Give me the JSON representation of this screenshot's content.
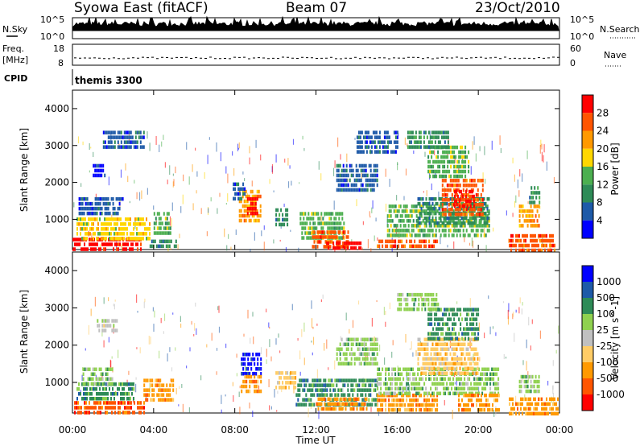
{
  "header": {
    "station": "Syowa East (fitACF)",
    "beam": "Beam 07",
    "date": "23/Oct/2010"
  },
  "sky_panel": {
    "left_label": "N.Sky",
    "right_label": "N.Search",
    "left_ticks": [
      "10^5",
      "10^0"
    ],
    "right_ticks": [
      "10^5",
      "10^0"
    ]
  },
  "freq_panel": {
    "left_label_top": "Freq.",
    "left_label_bottom": "[MHz]",
    "left_ticks": [
      "18",
      "8"
    ],
    "right_label": "Nave",
    "right_ticks": [
      "60",
      "0"
    ]
  },
  "cpid": {
    "label": "CPID",
    "value": "themis 3300"
  },
  "x_axis": {
    "label": "Time UT",
    "ticks": [
      "00:00",
      "04:00",
      "08:00",
      "12:00",
      "16:00",
      "20:00",
      "00:00"
    ]
  },
  "colors": {
    "power": [
      "#0000ff",
      "#1e5aa8",
      "#2e8b57",
      "#4caf50",
      "#ffd700",
      "#ff9900",
      "#ff5500",
      "#ff0000"
    ],
    "velocity": [
      "#ff0000",
      "#ff5500",
      "#ff9900",
      "#ffcc66",
      "#c0c0c0",
      "#8fd14f",
      "#2e8b57",
      "#1e5aa8",
      "#0000ff"
    ]
  },
  "chart_data": [
    {
      "type": "heatmap",
      "title": "",
      "ylabel": "Slant Range [km]",
      "xlabel": "",
      "x_hours": [
        0,
        24
      ],
      "ylim": [
        180,
        4500
      ],
      "yticks": [
        "4000",
        "3000",
        "2000",
        "1000"
      ],
      "colorbar_label": "Power [dB]",
      "colorbar_ticks": [
        "28",
        "24",
        "20",
        "16",
        "12",
        "8",
        "4"
      ],
      "colorbar_range": [
        0,
        30
      ],
      "patches": [
        {
          "t0": 0.0,
          "t1": 3.4,
          "r0": 200,
          "r1": 500,
          "level": 7
        },
        {
          "t0": 0.2,
          "t1": 3.8,
          "r0": 500,
          "r1": 1050,
          "level": 4
        },
        {
          "t0": 0.3,
          "t1": 2.5,
          "r0": 1100,
          "r1": 1600,
          "level": 1
        },
        {
          "t0": 1.0,
          "t1": 1.6,
          "r0": 2200,
          "r1": 2500,
          "level": 0
        },
        {
          "t0": 1.5,
          "t1": 3.5,
          "r0": 2900,
          "r1": 3400,
          "level": 1
        },
        {
          "t0": 3.8,
          "t1": 5.2,
          "r0": 200,
          "r1": 450,
          "level": 2
        },
        {
          "t0": 4.0,
          "t1": 4.8,
          "r0": 600,
          "r1": 1200,
          "level": 3
        },
        {
          "t0": 8.2,
          "t1": 9.3,
          "r0": 1000,
          "r1": 1800,
          "level": 5
        },
        {
          "t0": 8.6,
          "t1": 9.1,
          "r0": 1200,
          "r1": 1600,
          "level": 7
        },
        {
          "t0": 7.9,
          "t1": 8.5,
          "r0": 1500,
          "r1": 2000,
          "level": 1
        },
        {
          "t0": 10.0,
          "t1": 10.6,
          "r0": 900,
          "r1": 1300,
          "level": 2
        },
        {
          "t0": 11.2,
          "t1": 13.4,
          "r0": 500,
          "r1": 1200,
          "level": 3
        },
        {
          "t0": 11.8,
          "t1": 13.6,
          "r0": 250,
          "r1": 700,
          "level": 6
        },
        {
          "t0": 12.5,
          "t1": 14.2,
          "r0": 200,
          "r1": 400,
          "level": 7
        },
        {
          "t0": 13.0,
          "t1": 15.0,
          "r0": 1800,
          "r1": 2500,
          "level": 1
        },
        {
          "t0": 14.0,
          "t1": 16.0,
          "r0": 2800,
          "r1": 3400,
          "level": 1
        },
        {
          "t0": 15.0,
          "t1": 18.0,
          "r0": 200,
          "r1": 450,
          "level": 6
        },
        {
          "t0": 15.5,
          "t1": 20.5,
          "r0": 600,
          "r1": 1400,
          "level": 3
        },
        {
          "t0": 17.0,
          "t1": 20.5,
          "r0": 900,
          "r1": 1600,
          "level": 2
        },
        {
          "t0": 18.2,
          "t1": 20.2,
          "r0": 1100,
          "r1": 2100,
          "level": 6
        },
        {
          "t0": 18.8,
          "t1": 19.8,
          "r0": 1300,
          "r1": 1800,
          "level": 7
        },
        {
          "t0": 17.5,
          "t1": 19.5,
          "r0": 2200,
          "r1": 3000,
          "level": 3
        },
        {
          "t0": 16.5,
          "t1": 18.5,
          "r0": 3000,
          "r1": 3400,
          "level": 2
        },
        {
          "t0": 21.5,
          "t1": 23.8,
          "r0": 200,
          "r1": 600,
          "level": 6
        },
        {
          "t0": 22.0,
          "t1": 23.0,
          "r0": 800,
          "r1": 1400,
          "level": 5
        },
        {
          "t0": 22.5,
          "t1": 23.0,
          "r0": 1500,
          "r1": 1900,
          "level": 2
        }
      ]
    },
    {
      "type": "heatmap",
      "title": "",
      "ylabel": "Slant Range [km]",
      "xlabel": "Time UT",
      "x_hours": [
        0,
        24
      ],
      "ylim": [
        180,
        4500
      ],
      "yticks": [
        "4000",
        "3000",
        "2000",
        "1000"
      ],
      "colorbar_label": "Velocity [m s^-1]",
      "colorbar_ticks": [
        "1000",
        "500",
        "100",
        "25",
        "-25",
        "-100",
        "-500",
        "-1000"
      ],
      "colorbar_range": [
        -1200,
        1200
      ],
      "patches": [
        {
          "t0": 0.0,
          "t1": 3.5,
          "r0": 200,
          "r1": 500,
          "level": 1
        },
        {
          "t0": 0.2,
          "t1": 3.0,
          "r0": 500,
          "r1": 1000,
          "level": 6
        },
        {
          "t0": 0.5,
          "t1": 2.0,
          "r0": 1000,
          "r1": 1400,
          "level": 5
        },
        {
          "t0": 1.2,
          "t1": 2.2,
          "r0": 2400,
          "r1": 2700,
          "level": 4
        },
        {
          "t0": 3.5,
          "t1": 5.0,
          "r0": 500,
          "r1": 1100,
          "level": 2
        },
        {
          "t0": 8.3,
          "t1": 9.3,
          "r0": 1200,
          "r1": 1800,
          "level": 8
        },
        {
          "t0": 8.3,
          "t1": 9.3,
          "r0": 700,
          "r1": 1200,
          "level": 2
        },
        {
          "t0": 10.0,
          "t1": 11.0,
          "r0": 800,
          "r1": 1300,
          "level": 3
        },
        {
          "t0": 11.0,
          "t1": 15.0,
          "r0": 400,
          "r1": 1100,
          "level": 6
        },
        {
          "t0": 12.0,
          "t1": 14.5,
          "r0": 250,
          "r1": 600,
          "level": 2
        },
        {
          "t0": 13.0,
          "t1": 15.0,
          "r0": 1500,
          "r1": 2200,
          "level": 5
        },
        {
          "t0": 15.0,
          "t1": 18.0,
          "r0": 250,
          "r1": 700,
          "level": 2
        },
        {
          "t0": 15.0,
          "t1": 21.0,
          "r0": 700,
          "r1": 1400,
          "level": 5
        },
        {
          "t0": 17.0,
          "t1": 20.0,
          "r0": 1200,
          "r1": 2200,
          "level": 3
        },
        {
          "t0": 17.5,
          "t1": 20.0,
          "r0": 2200,
          "r1": 3000,
          "level": 6
        },
        {
          "t0": 16.0,
          "t1": 18.0,
          "r0": 2900,
          "r1": 3400,
          "level": 5
        },
        {
          "t0": 19.0,
          "t1": 21.0,
          "r0": 250,
          "r1": 700,
          "level": 2
        },
        {
          "t0": 21.5,
          "t1": 23.9,
          "r0": 200,
          "r1": 600,
          "level": 2
        },
        {
          "t0": 22.0,
          "t1": 23.0,
          "r0": 700,
          "r1": 1200,
          "level": 5
        }
      ]
    }
  ]
}
